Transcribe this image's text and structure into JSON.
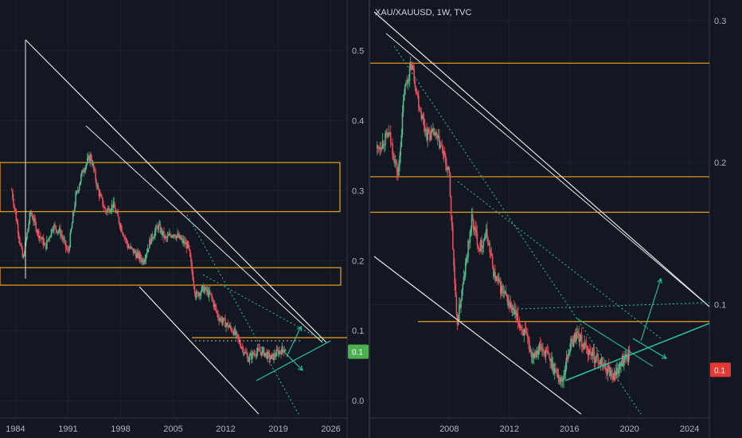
{
  "colors": {
    "bg": "#131722",
    "grid": "#1c2030",
    "axis_text": "#b2b5be",
    "candle_up": "#53b987",
    "candle_down": "#eb4d5c",
    "orange_levels": "#f0a020",
    "white_channel": "#e8e8e8",
    "green_trend": "#26c6a0",
    "tag_left": "#4caf50",
    "tag_right": "#e53935"
  },
  "left_panel": {
    "x_ticks": [
      "1984",
      "1991",
      "1998",
      "2005",
      "2012",
      "2019",
      "2026"
    ],
    "y_ticks": [
      "0.0",
      "0.1",
      "0.2",
      "0.3",
      "0.4",
      "0.5"
    ],
    "price_tag": "0.1"
  },
  "right_panel": {
    "symbol": "XAU/XAUUSD, 1W, TVC",
    "x_ticks": [
      "2008",
      "2012",
      "2016",
      "2020",
      "2024"
    ],
    "y_ticks": [
      "0.3",
      "0.2",
      "0.1"
    ],
    "price_tag": "0.1"
  },
  "chart_data": [
    {
      "type": "line",
      "title": "",
      "xlabel": "",
      "ylabel": "",
      "xlim": [
        1983,
        2027
      ],
      "ylim": [
        -0.01,
        0.53
      ],
      "series": [
        {
          "x": [
            1983.5,
            1985,
            1986,
            1987,
            1988,
            1989,
            1990,
            1991,
            1992,
            1993,
            1994,
            1995,
            1996,
            1997,
            1998,
            1999,
            2000,
            2001,
            2002,
            2003,
            2004,
            2005,
            2006,
            2007,
            2008,
            2009,
            2010,
            2011,
            2012,
            2013,
            2014,
            2015,
            2016,
            2017,
            2018,
            2019,
            2020
          ],
          "values": [
            0.3,
            0.2,
            0.27,
            0.24,
            0.22,
            0.25,
            0.24,
            0.21,
            0.29,
            0.33,
            0.35,
            0.3,
            0.27,
            0.28,
            0.25,
            0.22,
            0.21,
            0.2,
            0.23,
            0.25,
            0.23,
            0.24,
            0.23,
            0.22,
            0.15,
            0.16,
            0.15,
            0.12,
            0.11,
            0.1,
            0.08,
            0.06,
            0.07,
            0.07,
            0.06,
            0.07,
            0.075
          ]
        }
      ],
      "levels": [
        0.34,
        0.27,
        0.19,
        0.165,
        0.09
      ]
    },
    {
      "type": "line",
      "title": "",
      "xlabel": "",
      "ylabel": "",
      "xlim": [
        2003,
        2025
      ],
      "ylim": [
        0.02,
        0.31
      ],
      "series": [
        {
          "x": [
            2003.2,
            2004,
            2004.6,
            2005,
            2005.5,
            2006,
            2006.5,
            2007,
            2007.5,
            2008,
            2008.5,
            2009,
            2009.5,
            2010,
            2010.5,
            2011,
            2011.5,
            2012,
            2012.5,
            2013,
            2013.5,
            2014,
            2014.5,
            2015,
            2015.5,
            2016,
            2016.5,
            2017,
            2017.5,
            2018,
            2018.5,
            2019,
            2019.5,
            2020
          ],
          "values": [
            0.21,
            0.22,
            0.19,
            0.25,
            0.27,
            0.24,
            0.22,
            0.22,
            0.21,
            0.19,
            0.085,
            0.12,
            0.16,
            0.14,
            0.15,
            0.12,
            0.11,
            0.1,
            0.09,
            0.08,
            0.065,
            0.07,
            0.065,
            0.055,
            0.045,
            0.07,
            0.08,
            0.07,
            0.065,
            0.06,
            0.055,
            0.05,
            0.06,
            0.065
          ]
        }
      ],
      "levels": [
        0.27,
        0.19,
        0.165,
        0.088
      ]
    }
  ]
}
